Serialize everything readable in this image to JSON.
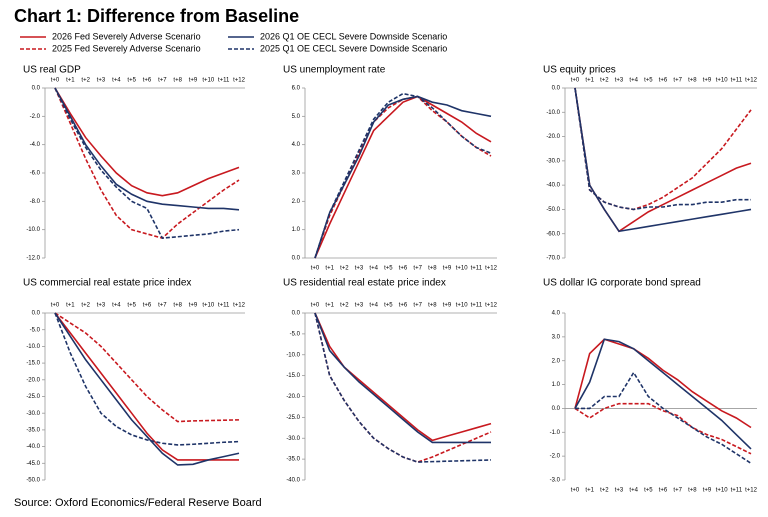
{
  "title": "Chart 1: Difference from Baseline",
  "source": "Source: Oxford Economics/Federal Reserve Board",
  "legend": [
    {
      "name": "2026 Fed Severely Adverse Scenario",
      "color": "#c8191f",
      "dash": false
    },
    {
      "name": "2025 Fed Severely Adverse Scenario",
      "color": "#c8191f",
      "dash": true
    },
    {
      "name": "2026 Q1 OE CECL Severe Downside Scenario",
      "color": "#1f3468",
      "dash": false
    },
    {
      "name": "2025 Q1 OE CECL Severe Downside Scenario",
      "color": "#1f3468",
      "dash": true
    }
  ],
  "chart_data": [
    {
      "type": "line",
      "title": "US real GDP",
      "xaxis_position": "top",
      "categories": [
        "t+0",
        "t+1",
        "t+2",
        "t+3",
        "t+4",
        "t+5",
        "t+6",
        "t+7",
        "t+8",
        "t+9",
        "t+10",
        "t+11",
        "t+12"
      ],
      "ylim": [
        -12,
        0
      ],
      "yticks": [
        {
          "value": 0,
          "label": "0.0"
        },
        {
          "value": -2,
          "label": "-2.0"
        },
        {
          "value": -4,
          "label": "-4.0"
        },
        {
          "value": -6,
          "label": "-6.0"
        },
        {
          "value": -8,
          "label": "-8.0"
        },
        {
          "value": -10,
          "label": "-10.0"
        },
        {
          "value": -12,
          "label": "-12.0"
        }
      ],
      "series": [
        {
          "values": [
            0,
            -1.8,
            -3.5,
            -4.8,
            -6.0,
            -6.9,
            -7.4,
            -7.6,
            -7.4,
            -6.9,
            -6.4,
            -6.0,
            -5.6
          ]
        },
        {
          "values": [
            0,
            -2.5,
            -5.0,
            -7.2,
            -9.0,
            -10.0,
            -10.3,
            -10.6,
            -9.6,
            -8.8,
            -8.0,
            -7.2,
            -6.5
          ]
        },
        {
          "values": [
            0,
            -2.0,
            -4.0,
            -5.5,
            -6.8,
            -7.5,
            -8.0,
            -8.2,
            -8.3,
            -8.4,
            -8.5,
            -8.5,
            -8.6
          ]
        },
        {
          "values": [
            0,
            -2.2,
            -4.2,
            -5.8,
            -7.0,
            -8.0,
            -8.5,
            -10.6,
            -10.5,
            -10.4,
            -10.3,
            -10.1,
            -10.0
          ]
        }
      ]
    },
    {
      "type": "line",
      "title": "US unemployment rate",
      "xaxis_position": "bottom",
      "categories": [
        "t+0",
        "t+1",
        "t+2",
        "t+3",
        "t+4",
        "t+5",
        "t+6",
        "t+7",
        "t+8",
        "t+9",
        "t+10",
        "t+11",
        "t+12"
      ],
      "ylim": [
        0,
        6
      ],
      "yticks": [
        {
          "value": 0,
          "label": "0.0"
        },
        {
          "value": 1,
          "label": "1.0"
        },
        {
          "value": 2,
          "label": "2.0"
        },
        {
          "value": 3,
          "label": "3.0"
        },
        {
          "value": 4,
          "label": "4.0"
        },
        {
          "value": 5,
          "label": "5.0"
        },
        {
          "value": 6,
          "label": "6.0"
        }
      ],
      "series": [
        {
          "values": [
            0,
            1.2,
            2.3,
            3.4,
            4.5,
            5.0,
            5.5,
            5.7,
            5.4,
            5.1,
            4.8,
            4.4,
            4.1
          ]
        },
        {
          "values": [
            0,
            1.5,
            2.6,
            3.7,
            4.8,
            5.3,
            5.6,
            5.7,
            5.2,
            4.8,
            4.3,
            3.9,
            3.6
          ]
        },
        {
          "values": [
            0,
            1.6,
            2.6,
            3.6,
            4.8,
            5.4,
            5.6,
            5.7,
            5.5,
            5.4,
            5.2,
            5.1,
            5.0
          ]
        },
        {
          "values": [
            0,
            1.6,
            2.7,
            3.8,
            4.9,
            5.5,
            5.8,
            5.7,
            5.3,
            4.8,
            4.3,
            3.9,
            3.7
          ]
        }
      ]
    },
    {
      "type": "line",
      "title": "US equity prices",
      "xaxis_position": "top",
      "categories": [
        "t+0",
        "t+1",
        "t+2",
        "t+3",
        "t+4",
        "t+5",
        "t+6",
        "t+7",
        "t+8",
        "t+9",
        "t+10",
        "t+11",
        "t+12"
      ],
      "ylim": [
        -70,
        0
      ],
      "yticks": [
        {
          "value": 0,
          "label": "0.0"
        },
        {
          "value": -10,
          "label": "-10.0"
        },
        {
          "value": -20,
          "label": "-20.0"
        },
        {
          "value": -30,
          "label": "-30.0"
        },
        {
          "value": -40,
          "label": "-40.0"
        },
        {
          "value": -50,
          "label": "-50.0"
        },
        {
          "value": -60,
          "label": "-60.0"
        },
        {
          "value": -70,
          "label": "-70.0"
        }
      ],
      "series": [
        {
          "values": [
            0,
            -40,
            -50,
            -59,
            -55,
            -51,
            -48,
            -45,
            -42,
            -39,
            -36,
            -33,
            -31
          ]
        },
        {
          "values": [
            0,
            -42,
            -47,
            -49,
            -50,
            -48,
            -45,
            -41,
            -37,
            -31,
            -25,
            -17,
            -9
          ]
        },
        {
          "values": [
            0,
            -40,
            -50,
            -59,
            -58,
            -57,
            -56,
            -55,
            -54,
            -53,
            -52,
            -51,
            -50
          ]
        },
        {
          "values": [
            0,
            -42,
            -47,
            -49,
            -50,
            -49,
            -49,
            -48,
            -48,
            -47,
            -47,
            -46,
            -46
          ]
        }
      ]
    },
    {
      "type": "line",
      "title": "US commercial real estate price index",
      "xaxis_position": "top",
      "categories": [
        "t+0",
        "t+1",
        "t+2",
        "t+3",
        "t+4",
        "t+5",
        "t+6",
        "t+7",
        "t+8",
        "t+9",
        "t+10",
        "t+11",
        "t+12"
      ],
      "ylim": [
        -50,
        0
      ],
      "yticks": [
        {
          "value": 0,
          "label": "0.0"
        },
        {
          "value": -5,
          "label": "-5.0"
        },
        {
          "value": -10,
          "label": "-10.0"
        },
        {
          "value": -15,
          "label": "-15.0"
        },
        {
          "value": -20,
          "label": "-20.0"
        },
        {
          "value": -25,
          "label": "-25.0"
        },
        {
          "value": -30,
          "label": "-30.0"
        },
        {
          "value": -35,
          "label": "-35.0"
        },
        {
          "value": -40,
          "label": "-40.0"
        },
        {
          "value": -45,
          "label": "-45.0"
        },
        {
          "value": -50,
          "label": "-50.0"
        }
      ],
      "series": [
        {
          "values": [
            0,
            -6,
            -12,
            -18,
            -24,
            -30,
            -36,
            -41,
            -44,
            -44,
            -44,
            -44,
            -44
          ]
        },
        {
          "values": [
            0,
            -3,
            -6,
            -10,
            -15,
            -20,
            -25,
            -29,
            -32.5,
            -32.3,
            -32.2,
            -32.1,
            -32
          ]
        },
        {
          "values": [
            0,
            -7,
            -14,
            -20,
            -26,
            -32,
            -37,
            -42,
            -45.5,
            -45.3,
            -44,
            -43,
            -42
          ]
        },
        {
          "values": [
            0,
            -12,
            -22,
            -30,
            -34,
            -36.5,
            -38,
            -39,
            -39.5,
            -39.3,
            -39,
            -38.7,
            -38.5
          ]
        }
      ]
    },
    {
      "type": "line",
      "title": "US residential real estate price index",
      "xaxis_position": "top",
      "categories": [
        "t+0",
        "t+1",
        "t+2",
        "t+3",
        "t+4",
        "t+5",
        "t+6",
        "t+7",
        "t+8",
        "t+9",
        "t+10",
        "t+11",
        "t+12"
      ],
      "ylim": [
        -40,
        0
      ],
      "yticks": [
        {
          "value": 0,
          "label": "0.0"
        },
        {
          "value": -5,
          "label": "-5.0"
        },
        {
          "value": -10,
          "label": "-10.0"
        },
        {
          "value": -15,
          "label": "-15.0"
        },
        {
          "value": -20,
          "label": "-20.0"
        },
        {
          "value": -25,
          "label": "-25.0"
        },
        {
          "value": -30,
          "label": "-30.0"
        },
        {
          "value": -35,
          "label": "-35.0"
        },
        {
          "value": -40,
          "label": "-40.0"
        }
      ],
      "series": [
        {
          "values": [
            0,
            -8,
            -13,
            -16,
            -19,
            -22,
            -25,
            -28,
            -30.5,
            -29.5,
            -28.5,
            -27.5,
            -26.5
          ]
        },
        {
          "values": [
            0,
            -15,
            -21,
            -26,
            -30,
            -32.5,
            -34.5,
            -35.7,
            -34.5,
            -33,
            -31.5,
            -30,
            -28.5
          ]
        },
        {
          "values": [
            0,
            -9,
            -13,
            -16.5,
            -19.5,
            -22.5,
            -25.5,
            -28.5,
            -31,
            -31,
            -31,
            -31,
            -31
          ]
        },
        {
          "values": [
            0,
            -15,
            -21,
            -26,
            -30,
            -32.5,
            -34.5,
            -35.7,
            -35.6,
            -35.5,
            -35.4,
            -35.3,
            -35.2
          ]
        }
      ]
    },
    {
      "type": "line",
      "title": "US dollar IG corporate bond spread",
      "xaxis_position": "bottom",
      "categories": [
        "t+0",
        "t+1",
        "t+2",
        "t+3",
        "t+4",
        "t+5",
        "t+6",
        "t+7",
        "t+8",
        "t+9",
        "t+10",
        "t+11",
        "t+12"
      ],
      "ylim": [
        -3,
        4
      ],
      "yticks": [
        {
          "value": 4,
          "label": "4.0"
        },
        {
          "value": 3,
          "label": "3.0"
        },
        {
          "value": 2,
          "label": "2.0"
        },
        {
          "value": 1,
          "label": "1.0"
        },
        {
          "value": 0,
          "label": "0.0"
        },
        {
          "value": -1,
          "label": "-1.0"
        },
        {
          "value": -2,
          "label": "-2.0"
        },
        {
          "value": -3,
          "label": "-3.0"
        }
      ],
      "series": [
        {
          "values": [
            0,
            2.3,
            2.9,
            2.7,
            2.5,
            2.1,
            1.6,
            1.2,
            0.7,
            0.3,
            -0.1,
            -0.4,
            -0.8
          ]
        },
        {
          "values": [
            0,
            -0.4,
            0,
            0.2,
            0.2,
            0.2,
            -0.1,
            -0.3,
            -0.8,
            -1.1,
            -1.3,
            -1.6,
            -1.9
          ]
        },
        {
          "values": [
            0,
            1.1,
            2.9,
            2.8,
            2.5,
            2.0,
            1.5,
            1.0,
            0.5,
            0,
            -0.5,
            -1.1,
            -1.7
          ]
        },
        {
          "values": [
            0,
            0,
            0.5,
            0.5,
            1.5,
            0.5,
            0,
            -0.4,
            -0.8,
            -1.2,
            -1.5,
            -1.9,
            -2.3
          ]
        }
      ]
    }
  ]
}
